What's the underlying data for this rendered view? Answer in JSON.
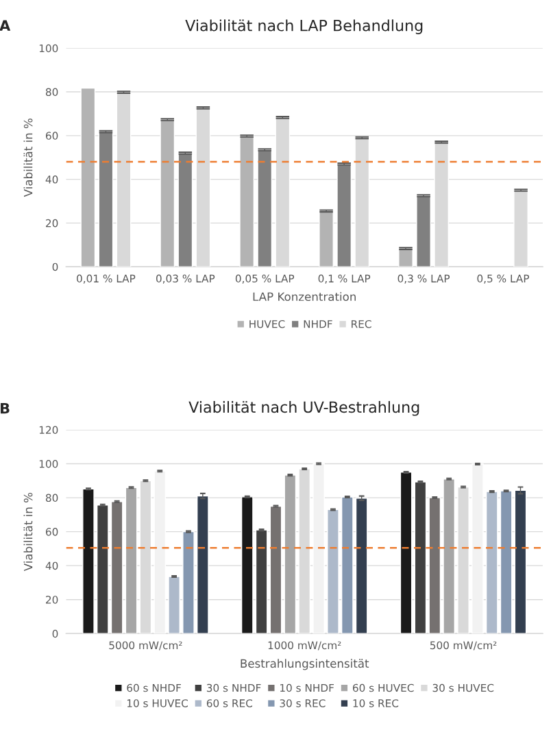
{
  "chart_data": [
    {
      "type": "bar",
      "title": "Viabilität nach LAP Behandlung",
      "xlabel": "LAP Konzentration",
      "ylabel": "Viabilität in %",
      "annotations": [
        "A"
      ],
      "categories": [
        "0,01 % LAP",
        "0,03 % LAP",
        "0,05 % LAP",
        "0,1 % LAP",
        "0,3 % LAP",
        "0,5 % LAP"
      ],
      "series": [
        {
          "name": "HUVEC",
          "color": "#b3b3b3",
          "values": [
            81.7,
            67.3,
            59.8,
            25.5,
            8.3,
            null
          ],
          "errors": [
            null,
            0.4,
            0.4,
            0.4,
            0.4,
            null
          ]
        },
        {
          "name": "NHDF",
          "color": "#808080",
          "values": [
            61.8,
            52,
            53.5,
            47,
            32.5,
            null
          ],
          "errors": [
            0.4,
            0.4,
            0.4,
            0.4,
            0.4,
            null
          ]
        },
        {
          "name": "REC",
          "color": "#d9d9d9",
          "values": [
            79.8,
            72.7,
            68.3,
            59,
            57,
            35
          ],
          "errors": [
            0.4,
            0.4,
            0.4,
            0.4,
            0.4,
            0.4
          ]
        }
      ],
      "ylim": [
        0,
        100
      ],
      "yticks": [
        0,
        20,
        40,
        60,
        80,
        100
      ],
      "grid": "y",
      "legend": "bottom",
      "ref_lines": [
        {
          "axis": "y",
          "value": 48,
          "color": "#ed7d31",
          "line_style": "dashed"
        }
      ]
    },
    {
      "type": "bar",
      "title": "Viabilität nach UV-Bestrahlung",
      "xlabel": "Bestrahlungsintensität",
      "ylabel": "Viabilität in %",
      "annotations": [
        "B"
      ],
      "categories": [
        "5000 mW/cm²",
        "1000 mW/cm²",
        "500 mW/cm²"
      ],
      "series": [
        {
          "name": "60 s NHDF",
          "color": "#1a1a1a",
          "values": [
            85.2,
            80.5,
            95
          ],
          "errors": [
            0.4,
            0.4,
            0.4
          ]
        },
        {
          "name": "30 s NHDF",
          "color": "#404040",
          "values": [
            75.7,
            61,
            89.3
          ],
          "errors": [
            0.4,
            0.4,
            0.4
          ]
        },
        {
          "name": "10 s NHDF",
          "color": "#757170",
          "values": [
            77.7,
            75,
            80
          ],
          "errors": [
            0.4,
            0.4,
            0.4
          ]
        },
        {
          "name": "60 s HUVEC",
          "color": "#a6a6a6",
          "values": [
            86,
            93.3,
            91
          ],
          "errors": [
            0.4,
            0.4,
            0.4
          ]
        },
        {
          "name": "30 s HUVEC",
          "color": "#d9d9d9",
          "values": [
            90,
            97,
            86.3
          ],
          "errors": [
            0.4,
            0.4,
            0.4
          ]
        },
        {
          "name": "10 s HUVEC",
          "color": "#f2f2f2",
          "values": [
            95.7,
            100,
            99.8
          ],
          "errors": [
            0.4,
            0.4,
            0.4
          ]
        },
        {
          "name": "60 s REC",
          "color": "#adb9ca",
          "values": [
            33.6,
            73,
            83.6
          ],
          "errors": [
            0.4,
            0.4,
            0.4
          ]
        },
        {
          "name": "30 s REC",
          "color": "#8497b0",
          "values": [
            60,
            80.4,
            84
          ],
          "errors": [
            0.4,
            0.4,
            0.4
          ]
        },
        {
          "name": "10 s REC",
          "color": "#333f50",
          "values": [
            81,
            79.7,
            84.3
          ],
          "errors": [
            1.5,
            1.3,
            2
          ]
        }
      ],
      "ylim": [
        0,
        120
      ],
      "yticks": [
        0,
        20,
        40,
        60,
        80,
        100,
        120
      ],
      "grid": "y",
      "legend": "bottom",
      "ref_lines": [
        {
          "axis": "y",
          "value": 50.5,
          "color": "#ed7d31",
          "line_style": "dashed"
        }
      ]
    }
  ]
}
